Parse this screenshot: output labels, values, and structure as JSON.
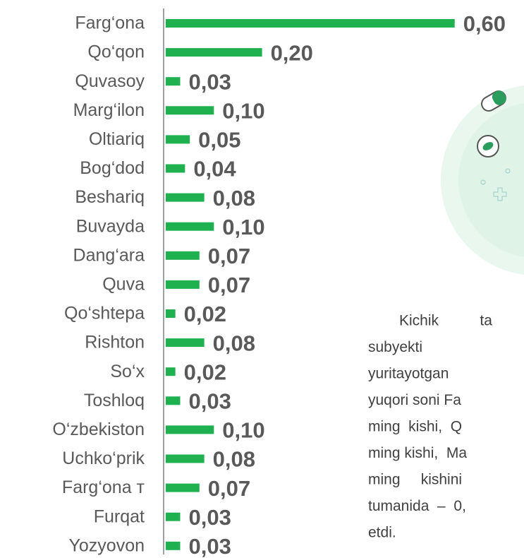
{
  "chart_data": {
    "type": "bar",
    "orientation": "horizontal",
    "categories": [
      "Farg‘ona",
      "Qo‘qon",
      "Quvasoy",
      "Marg‘ilon",
      "Oltiariq",
      "Bog‘dod",
      "Beshariq",
      "Buvayda",
      "Dang‘ara",
      "Quva",
      "Qo‘shtepa",
      "Rishton",
      "So‘x",
      "Toshloq",
      "O‘zbekiston",
      "Uchko‘prik",
      "Farg‘ona т",
      "Furqat",
      "Yozyovon"
    ],
    "values": [
      0.6,
      0.2,
      0.03,
      0.1,
      0.05,
      0.04,
      0.08,
      0.1,
      0.07,
      0.07,
      0.02,
      0.08,
      0.02,
      0.03,
      0.1,
      0.08,
      0.07,
      0.03,
      0.03
    ],
    "value_labels": [
      "0,60",
      "0,20",
      "0,03",
      "0,10",
      "0,05",
      "0,04",
      "0,08",
      "0,10",
      "0,07",
      "0,07",
      "0,02",
      "0,08",
      "0,02",
      "0,03",
      "0,10",
      "0,08",
      "0,07",
      "0,03",
      "0,03"
    ],
    "color": "#1fb04f",
    "xlim": [
      0,
      0.7
    ]
  },
  "paragraph": {
    "lines": [
      "Kichik          ta",
      "subyekti",
      "yuritayotgan",
      "yuqori soni Fa",
      "ming  kishi,  Q",
      "ming kishi,  Ma",
      "ming     kishini",
      "tumanida  –  0,",
      "etdi."
    ]
  }
}
